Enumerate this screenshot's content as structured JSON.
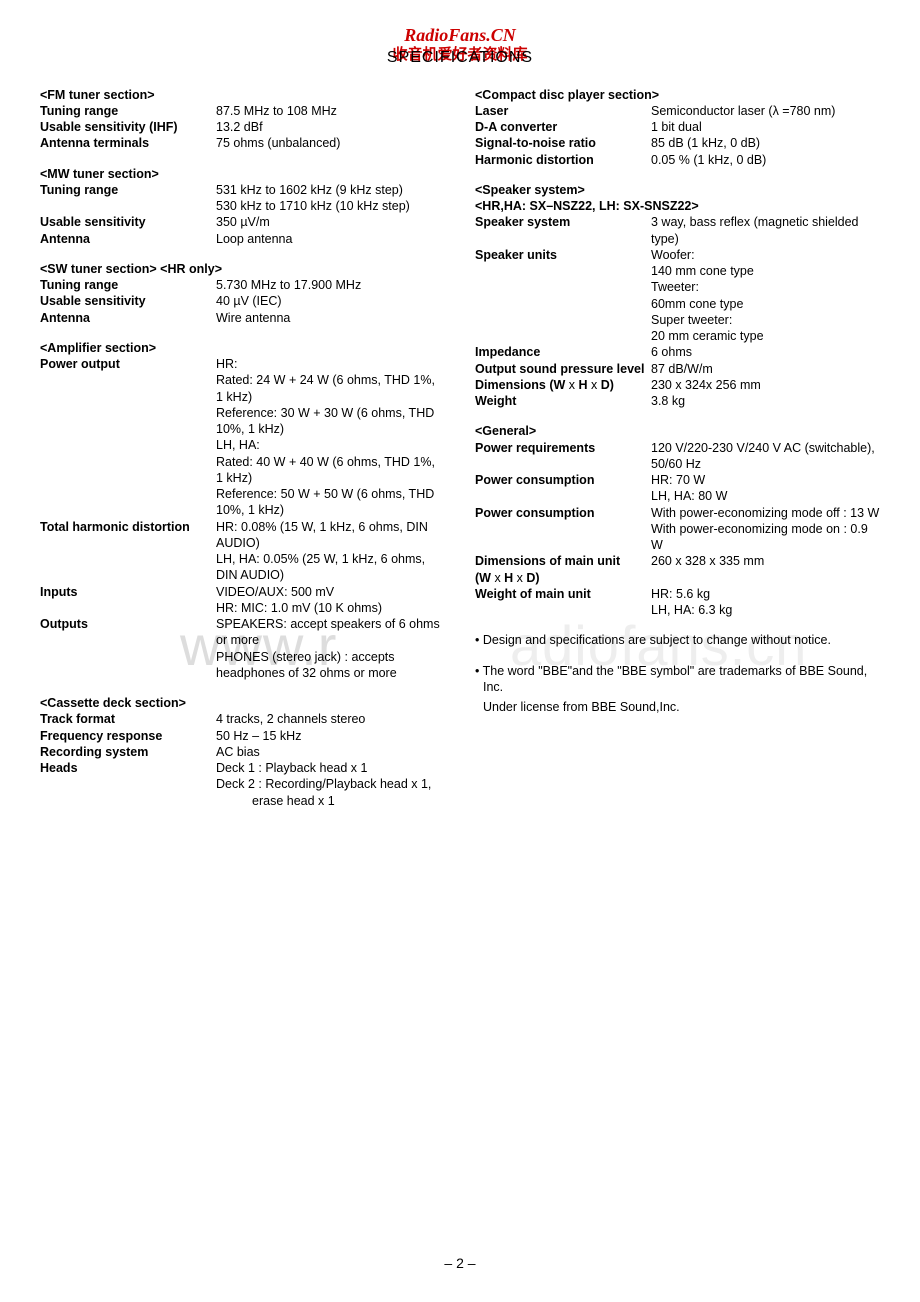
{
  "header": {
    "site_cn": "RadioFans.CN",
    "site_sub": "收音机爱好者资料库",
    "page_title": "SPECIFICATIONS"
  },
  "watermarks": {
    "w1": "www.r",
    "w2": "adiofans.cn"
  },
  "page_number": "– 2 –",
  "left": [
    {
      "type": "section",
      "text": "<FM tuner section>"
    },
    {
      "type": "row",
      "label": "Tuning range",
      "value": "87.5 MHz to 108 MHz"
    },
    {
      "type": "row",
      "label": "Usable sensitivity (IHF)",
      "value": "13.2 dBf"
    },
    {
      "type": "row",
      "label": "Antenna terminals",
      "value": "75 ohms (unbalanced)"
    },
    {
      "type": "section",
      "text": "<MW tuner section>"
    },
    {
      "type": "row",
      "label": "Tuning range",
      "value": "531 kHz to 1602 kHz (9 kHz step)"
    },
    {
      "type": "cont",
      "value": "530 kHz to 1710 kHz (10 kHz step)"
    },
    {
      "type": "row",
      "label": "Usable sensitivity",
      "value": "350 µV/m"
    },
    {
      "type": "row",
      "label": "Antenna",
      "value": "Loop antenna"
    },
    {
      "type": "section",
      "text": "<SW tuner section> <HR only>"
    },
    {
      "type": "row",
      "label": "Tuning range",
      "value": "5.730 MHz to 17.900 MHz"
    },
    {
      "type": "row",
      "label": "Usable sensitivity",
      "value": "40 µV (IEC)"
    },
    {
      "type": "row",
      "label": "Antenna",
      "value": "Wire antenna"
    },
    {
      "type": "section",
      "text": "<Amplifier section>"
    },
    {
      "type": "row",
      "label": "Power output",
      "value": "HR:"
    },
    {
      "type": "cont",
      "value": "Rated: 24 W + 24 W (6 ohms, THD 1%, 1 kHz)"
    },
    {
      "type": "cont",
      "value": "Reference: 30 W + 30 W (6 ohms, THD 10%, 1 kHz)"
    },
    {
      "type": "cont",
      "value": "LH, HA:"
    },
    {
      "type": "cont",
      "value": "Rated: 40 W + 40 W (6 ohms, THD 1%, 1 kHz)"
    },
    {
      "type": "cont",
      "value": "Reference: 50 W + 50 W (6 ohms, THD 10%, 1 kHz)"
    },
    {
      "type": "row",
      "label": "Total harmonic distortion",
      "value": "HR: 0.08% (15 W, 1 kHz, 6 ohms, DIN AUDIO)"
    },
    {
      "type": "cont",
      "value": "LH, HA: 0.05% (25 W, 1 kHz, 6 ohms, DIN AUDIO)"
    },
    {
      "type": "row",
      "label": "Inputs",
      "value": "VIDEO/AUX: 500 mV"
    },
    {
      "type": "cont",
      "value": "HR: MIC: 1.0 mV (10 K ohms)"
    },
    {
      "type": "row",
      "label": "Outputs",
      "value": "SPEAKERS: accept speakers of 6 ohms or more"
    },
    {
      "type": "cont",
      "value": "PHONES (stereo jack) : accepts headphones of 32 ohms or more"
    },
    {
      "type": "section",
      "text": "<Cassette deck section>"
    },
    {
      "type": "row",
      "label": "Track format",
      "value": "4 tracks, 2 channels stereo"
    },
    {
      "type": "row",
      "label": "Frequency response",
      "value": "50 Hz – 15 kHz"
    },
    {
      "type": "row",
      "label": "Recording system",
      "value": "AC bias"
    },
    {
      "type": "row",
      "label": "Heads",
      "value": "Deck 1 : Playback head x 1"
    },
    {
      "type": "cont",
      "value": "Deck 2 : Recording/Playback head x 1,"
    },
    {
      "type": "cont_sub",
      "value": "erase head x 1"
    }
  ],
  "right": [
    {
      "type": "section",
      "text": "<Compact disc player section>"
    },
    {
      "type": "row",
      "label": "Laser",
      "value": "Semiconductor laser (λ =780 nm)"
    },
    {
      "type": "row",
      "label": "D-A converter",
      "value": "1 bit dual"
    },
    {
      "type": "row",
      "label": "Signal-to-noise ratio",
      "value": "85 dB (1 kHz, 0 dB)"
    },
    {
      "type": "row",
      "label": "Harmonic distortion",
      "value": "0.05 % (1 kHz, 0 dB)"
    },
    {
      "type": "section",
      "text": "<Speaker system>"
    },
    {
      "type": "bold",
      "text": "<HR,HA: SX–NSZ22, LH: SX-SNSZ22>"
    },
    {
      "type": "row",
      "label": "Speaker system",
      "value": "3 way, bass reflex (magnetic shielded type)"
    },
    {
      "type": "row",
      "label": "Speaker units",
      "value": "Woofer:"
    },
    {
      "type": "cont",
      "value": "140 mm cone type"
    },
    {
      "type": "cont",
      "value": "Tweeter:"
    },
    {
      "type": "cont",
      "value": "60mm cone type"
    },
    {
      "type": "cont",
      "value": "Super tweeter:"
    },
    {
      "type": "cont",
      "value": "20 mm ceramic type"
    },
    {
      "type": "row",
      "label": "Impedance",
      "value": "6 ohms"
    },
    {
      "type": "row",
      "label": "Output sound pressure level",
      "value": "87 dB/W/m"
    },
    {
      "type": "row_html",
      "label_html": "Dimensions (W <span style='font-weight:normal'>x</span> H <span style='font-weight:normal'>x</span> D)",
      "value": "230 x 324x 256 mm"
    },
    {
      "type": "row",
      "label": "Weight",
      "value": "3.8 kg"
    },
    {
      "type": "section",
      "text": "<General>"
    },
    {
      "type": "row",
      "label": "Power requirements",
      "value": "120 V/220-230 V/240 V AC (switchable), 50/60 Hz"
    },
    {
      "type": "row",
      "label": "Power consumption",
      "value": "HR: 70 W"
    },
    {
      "type": "cont",
      "value": "LH, HA: 80 W"
    },
    {
      "type": "row",
      "label": "Power consumption",
      "value": "With power-economizing mode off : 13 W"
    },
    {
      "type": "cont",
      "value": "With power-economizing mode on : 0.9 W"
    },
    {
      "type": "row_html",
      "label_html": "Dimensions of main unit<br>(W <span style='font-weight:normal'>x</span> H <span style='font-weight:normal'>x</span> D)",
      "value": "260 x 328 x 335 mm"
    },
    {
      "type": "row",
      "label": "Weight of main unit",
      "value": "HR: 5.6 kg"
    },
    {
      "type": "cont",
      "value": "LH, HA: 6.3 kg"
    },
    {
      "type": "note",
      "text": "• Design and specifications are subject to change without  notice."
    },
    {
      "type": "note",
      "text": "• The word \"BBE\"and the \"BBE symbol\" are trademarks of BBE Sound, Inc."
    },
    {
      "type": "note_plain",
      "text": "Under license from BBE Sound,Inc."
    }
  ]
}
